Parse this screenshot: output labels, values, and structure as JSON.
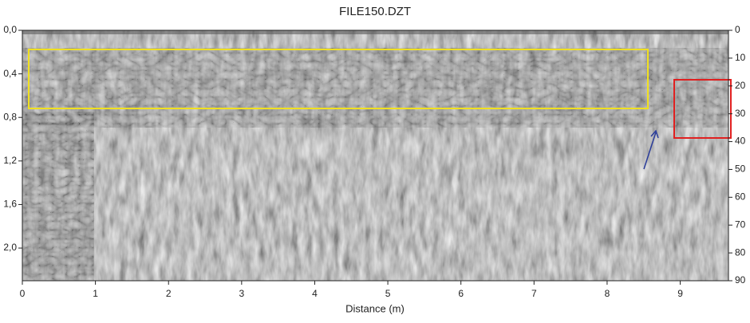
{
  "chart_data": {
    "type": "radargram",
    "title": "FILE150.DZT",
    "x_label": "Distance (m)",
    "xlim": [
      0,
      9.66
    ],
    "xticks": [
      0,
      1,
      2,
      3,
      4,
      5,
      6,
      7,
      8,
      9
    ],
    "ylim": [
      0,
      2.3
    ],
    "y_inverted": true,
    "yticks": [
      {
        "value": 0,
        "label": "0,0"
      },
      {
        "value": 0.4,
        "label": "0,4"
      },
      {
        "value": 0.8,
        "label": "0,8"
      },
      {
        "value": 1.2,
        "label": "1,2"
      },
      {
        "value": 1.6,
        "label": "1,6"
      },
      {
        "value": 2.0,
        "label": "2,0"
      }
    ],
    "y2lim": [
      0,
      90
    ],
    "y2ticks": [
      0,
      10,
      20,
      30,
      40,
      50,
      60,
      70,
      80,
      90
    ]
  }
}
